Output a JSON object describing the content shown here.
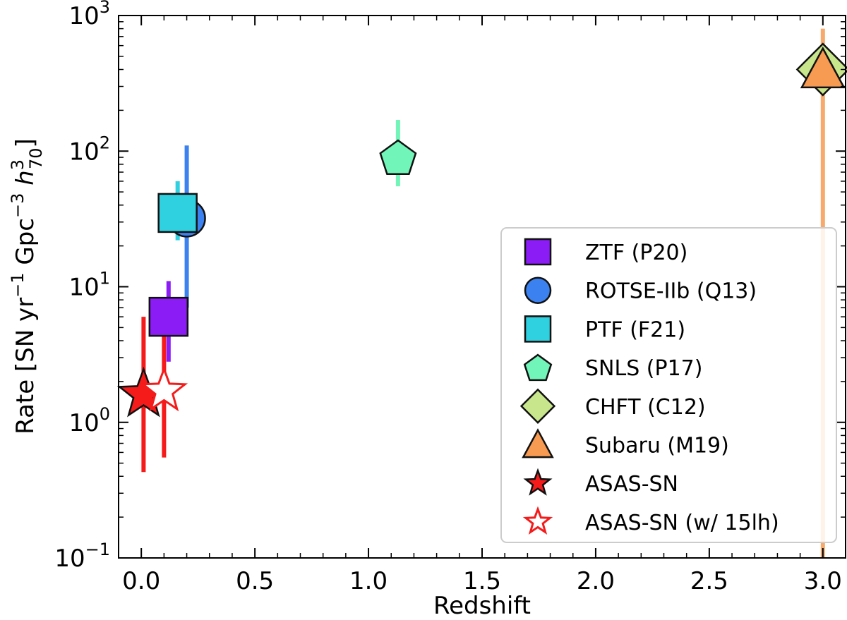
{
  "chart_data": {
    "type": "scatter",
    "xlabel": "Redshift",
    "ylabel_parts": {
      "prefix": "Rate [SN yr",
      "exp1": "−1",
      "mid": " Gpc",
      "exp2": "−3",
      "h": " h",
      "hsup": "3",
      "hsub": "70",
      "suffix": "]"
    },
    "xlim": [
      -0.1,
      3.1
    ],
    "ylim_log10": [
      -1,
      3
    ],
    "x_ticks": [
      {
        "value": 0.0,
        "label": "0.0"
      },
      {
        "value": 0.5,
        "label": "0.5"
      },
      {
        "value": 1.0,
        "label": "1.0"
      },
      {
        "value": 1.5,
        "label": "1.5"
      },
      {
        "value": 2.0,
        "label": "2.0"
      },
      {
        "value": 2.5,
        "label": "2.5"
      },
      {
        "value": 3.0,
        "label": "3.0"
      }
    ],
    "y_ticks": [
      {
        "exp": -1,
        "base": "10",
        "sup": "−1"
      },
      {
        "exp": 0,
        "base": "10",
        "sup": "0"
      },
      {
        "exp": 1,
        "base": "10",
        "sup": "1"
      },
      {
        "exp": 2,
        "base": "10",
        "sup": "2"
      },
      {
        "exp": 3,
        "base": "10",
        "sup": "3"
      }
    ],
    "series": [
      {
        "name": "ZTF (P20)",
        "marker": "square",
        "color": "#8b1cf5",
        "fill": true,
        "x": 0.12,
        "y": 6,
        "yerr": [
          2.8,
          11
        ]
      },
      {
        "name": "ROTSE-IIb (Q13)",
        "marker": "circle",
        "color": "#3b82f0",
        "fill": true,
        "x": 0.2,
        "y": 32,
        "yerr": [
          7,
          110
        ]
      },
      {
        "name": "PTF (F21)",
        "marker": "square",
        "color": "#2fd0e0",
        "fill": true,
        "x": 0.16,
        "y": 35,
        "yerr": [
          22,
          60
        ]
      },
      {
        "name": "SNLS (P17)",
        "marker": "pentagon",
        "color": "#72f5b8",
        "fill": true,
        "x": 1.13,
        "y": 90,
        "yerr": [
          55,
          170
        ]
      },
      {
        "name": "CHFT (C12)",
        "marker": "diamond",
        "color": "#c8e68c",
        "fill": true,
        "x": 3.0,
        "y": 400,
        "yerr": null
      },
      {
        "name": "Subaru (M19)",
        "marker": "triangle",
        "color": "#f79a52",
        "fill": true,
        "x": 3.0,
        "y": 400,
        "yerr": [
          0.1,
          800
        ]
      },
      {
        "name": "ASAS-SN",
        "marker": "star",
        "color": "#f51b1b",
        "fill": true,
        "x": 0.01,
        "y": 1.6,
        "yerr": [
          0.43,
          6
        ]
      },
      {
        "name": "ASAS-SN (w/ 15lh)",
        "marker": "star",
        "color": "#f51b1b",
        "fill": false,
        "x": 0.1,
        "y": 1.7,
        "yerr": [
          0.55,
          6
        ]
      }
    ],
    "legend_location": "lower-right"
  }
}
